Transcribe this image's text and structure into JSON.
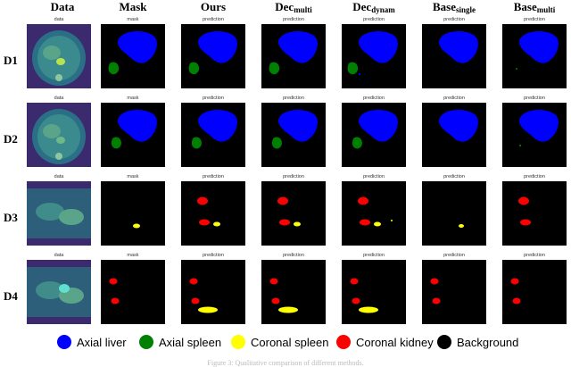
{
  "columns": [
    {
      "key": "data",
      "label": "Data",
      "sub": ""
    },
    {
      "key": "mask",
      "label": "Mask",
      "sub": ""
    },
    {
      "key": "ours",
      "label": "Ours",
      "sub": ""
    },
    {
      "key": "decmulti",
      "label": "Dec",
      "sub": "multi"
    },
    {
      "key": "decdynam",
      "label": "Dec",
      "sub": "dynam"
    },
    {
      "key": "basesingle",
      "label": "Base",
      "sub": "single"
    },
    {
      "key": "basemulti",
      "label": "Base",
      "sub": "multi"
    }
  ],
  "panel_captions": {
    "data": "data",
    "mask": "mask",
    "ours": "prediction",
    "decmulti": "prediction",
    "decdynam": "prediction",
    "basesingle": "prediction",
    "basemulti": "prediction"
  },
  "rows": [
    {
      "label": "D1",
      "view": "axial"
    },
    {
      "label": "D2",
      "view": "axial"
    },
    {
      "label": "D3",
      "view": "coronal"
    },
    {
      "label": "D4",
      "view": "coronal"
    }
  ],
  "legend": [
    {
      "label": "Axial liver",
      "color": "#0000ff"
    },
    {
      "label": "Axial spleen",
      "color": "#008000"
    },
    {
      "label": "Coronal spleen",
      "color": "#ffff00"
    },
    {
      "label": "Coronal kidney",
      "color": "#ff0000"
    },
    {
      "label": "Background",
      "color": "#000000"
    }
  ],
  "caption": "Figure 3: Qualitative comparison of different methods."
}
